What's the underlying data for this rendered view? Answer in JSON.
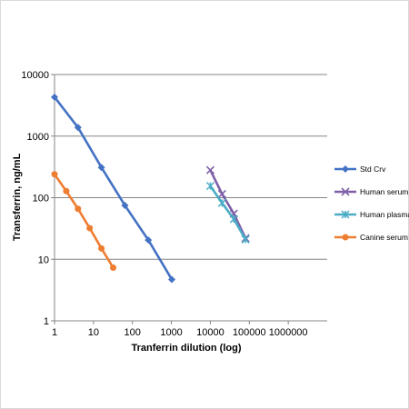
{
  "chart_data": {
    "type": "scatter",
    "title": "",
    "xlabel": "Tranferrin dilution (log)",
    "ylabel": "Transferrin, ng/mL",
    "xscale": "log",
    "yscale": "log",
    "xlim": [
      1,
      10000000
    ],
    "ylim": [
      1,
      10000
    ],
    "x_tick_labels": [
      "1",
      "10",
      "100",
      "1000",
      "10000",
      "100000",
      "1000000"
    ],
    "y_tick_labels": [
      "1",
      "10",
      "100",
      "1000",
      "10000"
    ],
    "grid": "horizontal",
    "legend_position": "right",
    "series": [
      {
        "name": "Std Crv",
        "color": "#4472c4",
        "marker": "diamond",
        "x": [
          1,
          4,
          16,
          64,
          256,
          1024
        ],
        "y": [
          4300,
          1380,
          310,
          75,
          20.5,
          4.7
        ]
      },
      {
        "name": "Human serum",
        "color": "#7f5fa8",
        "marker": "x",
        "x": [
          10000,
          20000,
          40000,
          80000
        ],
        "y": [
          280,
          115,
          55,
          22
        ]
      },
      {
        "name": "Human plasma",
        "color": "#4bacc6",
        "marker": "star",
        "x": [
          10000,
          20000,
          40000,
          80000
        ],
        "y": [
          155,
          82,
          45,
          21
        ]
      },
      {
        "name": "Canine serum",
        "color": "#ed7d31",
        "marker": "circle",
        "x": [
          1,
          2,
          4,
          8,
          16,
          32
        ],
        "y": [
          240,
          128,
          66,
          32,
          15,
          7.3
        ]
      }
    ]
  }
}
